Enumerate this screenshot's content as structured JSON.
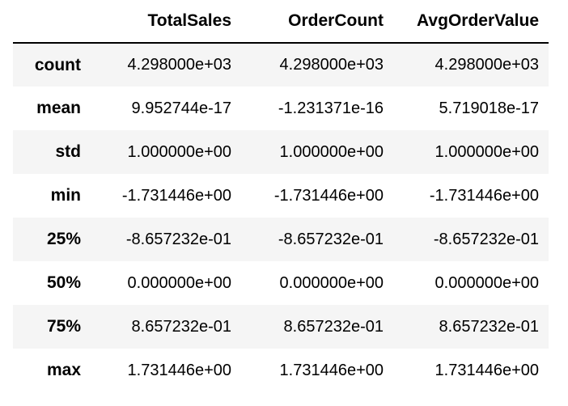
{
  "table": {
    "columns": [
      "TotalSales",
      "OrderCount",
      "AvgOrderValue"
    ],
    "rows": [
      {
        "label": "count",
        "values": [
          "4.298000e+03",
          "4.298000e+03",
          "4.298000e+03"
        ]
      },
      {
        "label": "mean",
        "values": [
          "9.952744e-17",
          "-1.231371e-16",
          "5.719018e-17"
        ]
      },
      {
        "label": "std",
        "values": [
          "1.000000e+00",
          "1.000000e+00",
          "1.000000e+00"
        ]
      },
      {
        "label": "min",
        "values": [
          "-1.731446e+00",
          "-1.731446e+00",
          "-1.731446e+00"
        ]
      },
      {
        "label": "25%",
        "values": [
          "-8.657232e-01",
          "-8.657232e-01",
          "-8.657232e-01"
        ]
      },
      {
        "label": "50%",
        "values": [
          "0.000000e+00",
          "0.000000e+00",
          "0.000000e+00"
        ]
      },
      {
        "label": "75%",
        "values": [
          "8.657232e-01",
          "8.657232e-01",
          "8.657232e-01"
        ]
      },
      {
        "label": "max",
        "values": [
          "1.731446e+00",
          "1.731446e+00",
          "1.731446e+00"
        ]
      }
    ]
  },
  "colors": {
    "stripe_background": "#f5f5f5",
    "background": "#ffffff",
    "text": "#000000",
    "header_rule": "#000000"
  }
}
